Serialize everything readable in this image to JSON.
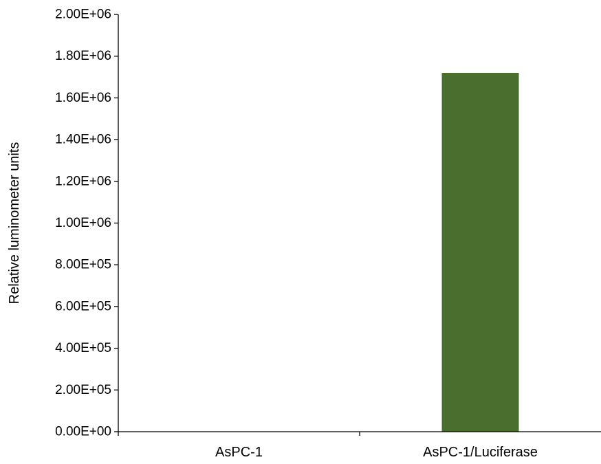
{
  "chart_data": {
    "type": "bar",
    "title": "",
    "xlabel": "",
    "ylabel": "Relative luminometer units",
    "categories": [
      "AsPC-1",
      "AsPC-1/Luciferase"
    ],
    "values": [
      0,
      1720000
    ],
    "ylim": [
      0,
      2000000
    ],
    "yticks": [
      0,
      200000,
      400000,
      600000,
      800000,
      1000000,
      1200000,
      1400000,
      1600000,
      1800000,
      2000000
    ],
    "ytick_labels": [
      "0.00E+00",
      "2.00E+05",
      "4.00E+05",
      "6.00E+05",
      "8.00E+05",
      "1.00E+06",
      "1.20E+06",
      "1.40E+06",
      "1.60E+06",
      "1.80E+06",
      "2.00E+06"
    ],
    "bar_color": "#4a6e2e",
    "axis_color": "#000000",
    "grid": false,
    "legend": "none"
  }
}
